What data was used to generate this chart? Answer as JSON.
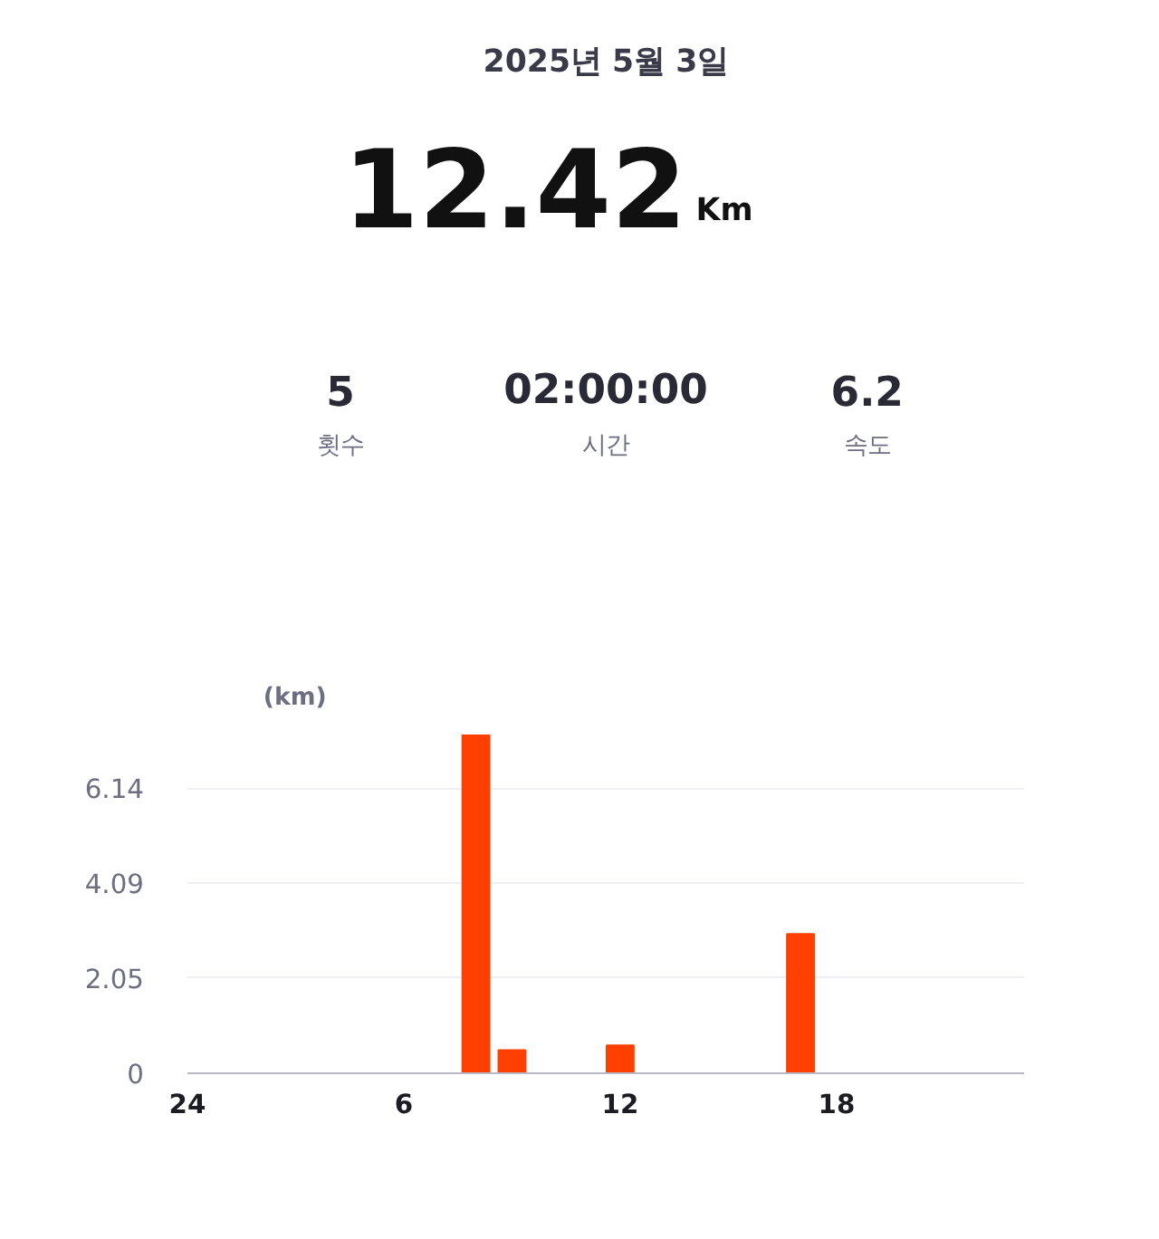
{
  "chart_data": {
    "type": "bar",
    "title": "2025년 5월 3일",
    "subtitle": "12.42",
    "ylabel": "(km)",
    "annotations": [
      "Km",
      "5",
      "횟수",
      "02:00:00",
      "시간",
      "6.2",
      "속도"
    ],
    "categories": [
      "24",
      null,
      null,
      null,
      null,
      null,
      "6",
      null,
      null,
      null,
      null,
      null,
      "12",
      null,
      null,
      null,
      null,
      null,
      "18",
      null,
      null,
      null,
      null,
      null
    ],
    "values": [
      null,
      null,
      null,
      null,
      null,
      null,
      null,
      null,
      7.3,
      0.5,
      null,
      null,
      0.6,
      null,
      null,
      null,
      null,
      3.0,
      null,
      null,
      null,
      null,
      null,
      null
    ],
    "color": "#ff4000",
    "ylim": [
      0,
      7.3
    ],
    "yticks": [
      0,
      2.05,
      4.09,
      6.14
    ],
    "grid": "y"
  }
}
